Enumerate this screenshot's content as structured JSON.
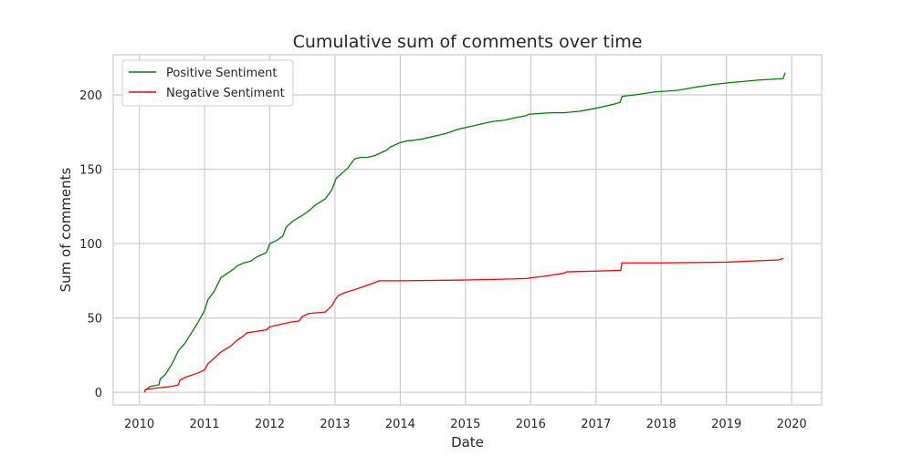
{
  "chart_data": {
    "type": "line",
    "title": "Cumulative sum of comments over time",
    "xlabel": "Date",
    "ylabel": "Sum of comments",
    "xlim": [
      2009.6,
      2020.46
    ],
    "ylim": [
      -8.5,
      227
    ],
    "x_ticks": [
      2010,
      2011,
      2012,
      2013,
      2014,
      2015,
      2016,
      2017,
      2018,
      2019,
      2020
    ],
    "x_tick_labels": [
      "2010",
      "2011",
      "2012",
      "2013",
      "2014",
      "2015",
      "2016",
      "2017",
      "2018",
      "2019",
      "2020"
    ],
    "y_ticks": [
      0,
      50,
      100,
      150,
      200
    ],
    "y_tick_labels": [
      "0",
      "50",
      "100",
      "150",
      "200"
    ],
    "grid": true,
    "legend_position": "top-left",
    "series": [
      {
        "name": "Positive Sentiment",
        "color": "#008000",
        "x": [
          2010.08,
          2010.17,
          2010.3,
          2010.32,
          2010.4,
          2010.5,
          2010.6,
          2010.7,
          2010.8,
          2010.9,
          2011.0,
          2011.05,
          2011.15,
          2011.25,
          2011.35,
          2011.45,
          2011.5,
          2011.6,
          2011.7,
          2011.8,
          2011.95,
          2012.0,
          2012.1,
          2012.2,
          2012.25,
          2012.35,
          2012.5,
          2012.6,
          2012.7,
          2012.85,
          2012.95,
          2013.02,
          2013.1,
          2013.2,
          2013.3,
          2013.4,
          2013.5,
          2013.6,
          2013.8,
          2013.85,
          2014.0,
          2014.1,
          2014.3,
          2014.5,
          2014.7,
          2014.9,
          2015.0,
          2015.2,
          2015.4,
          2015.6,
          2015.8,
          2015.93,
          2015.97,
          2016.3,
          2016.5,
          2016.75,
          2017.0,
          2017.1,
          2017.3,
          2017.37,
          2017.4,
          2017.6,
          2017.9,
          2018.25,
          2018.5,
          2018.8,
          2019.0,
          2019.5,
          2019.87,
          2019.9
        ],
        "y": [
          1,
          4,
          5,
          9,
          12,
          19,
          28,
          33,
          40,
          47,
          55,
          62,
          68,
          77,
          80,
          83,
          85,
          87,
          88,
          91,
          94,
          100,
          102,
          105,
          111,
          115,
          119,
          122,
          126,
          130,
          136,
          144,
          147,
          151,
          157,
          158,
          158,
          159,
          163,
          165,
          168,
          169,
          170,
          172,
          174,
          177,
          178,
          180,
          182,
          183,
          185,
          186,
          187,
          188,
          188,
          189,
          191,
          192,
          194,
          195,
          199,
          200,
          202,
          203,
          205,
          207,
          208,
          210,
          211,
          215
        ]
      },
      {
        "name": "Negative Sentiment",
        "color": "#ff0000",
        "x": [
          2010.08,
          2010.1,
          2010.3,
          2010.5,
          2010.6,
          2010.62,
          2010.7,
          2010.9,
          2011.0,
          2011.05,
          2011.15,
          2011.25,
          2011.4,
          2011.5,
          2011.6,
          2011.65,
          2011.95,
          2012.0,
          2012.1,
          2012.3,
          2012.45,
          2012.5,
          2012.6,
          2012.85,
          2012.95,
          2013.0,
          2013.05,
          2013.15,
          2013.3,
          2013.5,
          2013.62,
          2013.68,
          2014.0,
          2015.0,
          2015.5,
          2015.95,
          2016.0,
          2016.2,
          2016.5,
          2016.55,
          2017.0,
          2017.38,
          2017.4,
          2018.0,
          2019.0,
          2019.8,
          2019.87
        ],
        "y": [
          0,
          2,
          3,
          4,
          5,
          8,
          10,
          13,
          15,
          19,
          23,
          27,
          31,
          35,
          38,
          40,
          42,
          44,
          45,
          47,
          48,
          51,
          53,
          54,
          58,
          62,
          65,
          67,
          69,
          72,
          74,
          75,
          75,
          75.5,
          76,
          76.5,
          77,
          78,
          80,
          81,
          81.5,
          82,
          87,
          87,
          87.5,
          89,
          90
        ]
      }
    ]
  }
}
